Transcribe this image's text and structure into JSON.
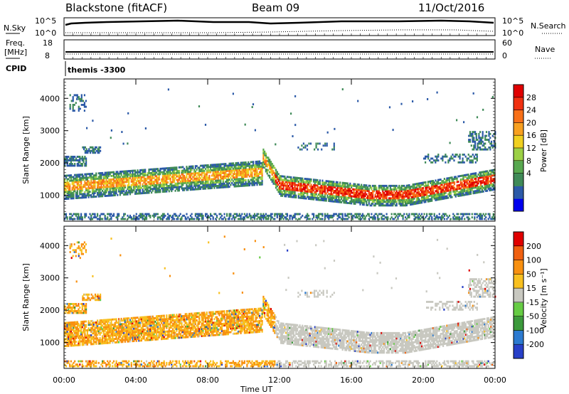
{
  "header": {
    "station": "Blackstone (fitACF)",
    "beam": "Beam 09",
    "date": "11/Oct/2016"
  },
  "strip": {
    "nsky_label": "N.Sky",
    "nsky_ticks": [
      "10^5",
      "10^0"
    ],
    "nsearch_label": "N.Search",
    "nsearch_ticks": [
      "10^5",
      "10^0"
    ],
    "freq_label": "Freq.",
    "freq_unit": "[MHz]",
    "freq_ticks": [
      "18",
      "8"
    ],
    "nave_label": "Nave",
    "nave_ticks": [
      "60",
      "0"
    ],
    "cpid_label": "CPID",
    "cpid_value": "themis -3300"
  },
  "chart_data": [
    {
      "type": "heatmap",
      "name": "power",
      "ylabel": "Slant Range [km]",
      "ylim": [
        200,
        4600
      ],
      "yticks": [
        "4000",
        "3000",
        "2000",
        "1000"
      ],
      "ytick_values": [
        4000,
        3000,
        2000,
        1000
      ],
      "colorbar_label": "Power [dB]",
      "colorbar_ticks": [
        "28",
        "24",
        "20",
        "16",
        "12",
        "8",
        "4"
      ],
      "colorbar_colors": [
        "#0000ee",
        "#2c5aa8",
        "#3f8a58",
        "#58a850",
        "#9cd045",
        "#f0d020",
        "#f8a020",
        "#f87018",
        "#f03010",
        "#e00000"
      ]
    },
    {
      "type": "heatmap",
      "name": "velocity",
      "ylabel": "Slant Range [km]",
      "ylim": [
        200,
        4600
      ],
      "yticks": [
        "4000",
        "3000",
        "2000",
        "1000"
      ],
      "ytick_values": [
        4000,
        3000,
        2000,
        1000
      ],
      "colorbar_label": "Velocity [m s⁻¹]",
      "colorbar_ticks": [
        "200",
        "100",
        "50",
        "15",
        "-15",
        "-50",
        "-100",
        "-200"
      ],
      "colorbar_colors": [
        "#2840c8",
        "#2c7ad0",
        "#3c9a3c",
        "#66cc44",
        "#c8c8c0",
        "#f8c020",
        "#f89010",
        "#f06010",
        "#e00000"
      ]
    }
  ],
  "x_axis": {
    "label": "Time UT",
    "ticks": [
      "00:00",
      "04:00",
      "08:00",
      "12:00",
      "16:00",
      "20:00",
      "00:00"
    ]
  }
}
